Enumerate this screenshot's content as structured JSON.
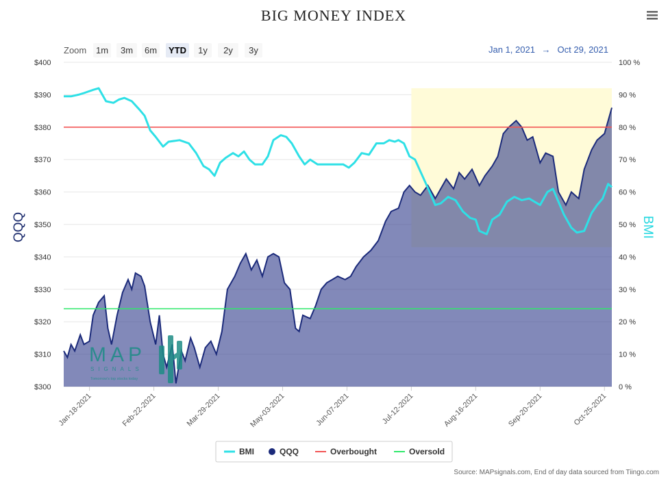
{
  "chart": {
    "title": "BIG MONEY INDEX",
    "zoom": {
      "label": "Zoom",
      "buttons": [
        "1m",
        "3m",
        "6m",
        "YTD",
        "1y",
        "2y",
        "3y"
      ],
      "active": "YTD"
    },
    "range": {
      "from": "Jan 1, 2021",
      "arrow": "→",
      "to": "Oct 29, 2021"
    },
    "axes": {
      "left_title": "QQQ",
      "right_title": "BMI",
      "left_ticks": [
        "$300",
        "$310",
        "$320",
        "$330",
        "$340",
        "$350",
        "$360",
        "$370",
        "$380",
        "$390",
        "$400"
      ],
      "right_ticks": [
        "0 %",
        "10 %",
        "20 %",
        "30 %",
        "40 %",
        "50 %",
        "60 %",
        "70 %",
        "80 %",
        "90 %",
        "100 %"
      ],
      "x_ticks": [
        "Jan-18-2021",
        "Feb-22-2021",
        "Mar-29-2021",
        "May-03-2021",
        "Jun-07-2021",
        "Jul-12-2021",
        "Aug-16-2021",
        "Sep-20-2021",
        "Oct-25-2021"
      ]
    },
    "legend": [
      {
        "name": "BMI",
        "symbol": "line"
      },
      {
        "name": "QQQ",
        "symbol": "dot"
      },
      {
        "name": "Overbought",
        "symbol": "line"
      },
      {
        "name": "Oversold",
        "symbol": "line"
      }
    ],
    "source": "Source: MAPsignals.com, End of day data sourced from Tiingo.com",
    "watermark": {
      "brand": "MAP",
      "sub": "SIGNALS",
      "tag": "Tomorrow's top stocks today"
    },
    "colors": {
      "bmi": "#2ee0e6",
      "qqq_fill": "#35418e",
      "qqq_line": "#1b2a7a",
      "overbought": "#f25454",
      "oversold": "#2ee86a",
      "highlight": "#fffbd8",
      "watermark": "#1e8c86"
    }
  },
  "chart_data": {
    "type": "line",
    "title": "BIG MONEY INDEX",
    "x_range": [
      "2021-01-04",
      "2021-10-29"
    ],
    "y_left": {
      "label": "QQQ",
      "range": [
        300,
        400
      ],
      "unit": "$"
    },
    "y_right": {
      "label": "BMI",
      "range": [
        0,
        100
      ],
      "unit": "%"
    },
    "overbought": 80,
    "oversold": 24,
    "highlight_range": [
      "2021-07-12",
      "2021-10-29"
    ],
    "highlight_bmi_range": [
      43,
      92
    ],
    "series": [
      {
        "name": "BMI",
        "axis": "right",
        "points": [
          [
            "2021-01-04",
            89.5
          ],
          [
            "2021-01-08",
            89.5
          ],
          [
            "2021-01-12",
            90
          ],
          [
            "2021-01-15",
            90.5
          ],
          [
            "2021-01-20",
            91.5
          ],
          [
            "2021-01-23",
            92
          ],
          [
            "2021-01-27",
            88
          ],
          [
            "2021-01-31",
            87.5
          ],
          [
            "2021-02-03",
            88.5
          ],
          [
            "2021-02-06",
            89
          ],
          [
            "2021-02-10",
            88
          ],
          [
            "2021-02-14",
            85.5
          ],
          [
            "2021-02-17",
            83.5
          ],
          [
            "2021-02-20",
            79
          ],
          [
            "2021-02-23",
            77
          ],
          [
            "2021-02-27",
            74
          ],
          [
            "2021-03-02",
            75.5
          ],
          [
            "2021-03-08",
            76
          ],
          [
            "2021-03-13",
            75
          ],
          [
            "2021-03-17",
            72
          ],
          [
            "2021-03-21",
            68
          ],
          [
            "2021-03-24",
            67
          ],
          [
            "2021-03-27",
            65
          ],
          [
            "2021-03-30",
            69
          ],
          [
            "2021-04-02",
            70.5
          ],
          [
            "2021-04-06",
            72
          ],
          [
            "2021-04-09",
            71
          ],
          [
            "2021-04-12",
            72.5
          ],
          [
            "2021-04-15",
            70
          ],
          [
            "2021-04-18",
            68.5
          ],
          [
            "2021-04-22",
            68.5
          ],
          [
            "2021-04-25",
            71
          ],
          [
            "2021-04-28",
            76
          ],
          [
            "2021-05-02",
            77.5
          ],
          [
            "2021-05-05",
            77
          ],
          [
            "2021-05-08",
            75
          ],
          [
            "2021-05-12",
            71
          ],
          [
            "2021-05-15",
            68.5
          ],
          [
            "2021-05-18",
            70
          ],
          [
            "2021-05-22",
            68.5
          ],
          [
            "2021-05-26",
            68.5
          ],
          [
            "2021-06-01",
            68.5
          ],
          [
            "2021-06-05",
            68.5
          ],
          [
            "2021-06-08",
            67.5
          ],
          [
            "2021-06-11",
            69
          ],
          [
            "2021-06-15",
            72
          ],
          [
            "2021-06-19",
            71.5
          ],
          [
            "2021-06-23",
            75
          ],
          [
            "2021-06-27",
            75
          ],
          [
            "2021-06-30",
            76
          ],
          [
            "2021-07-03",
            75.5
          ],
          [
            "2021-07-05",
            76
          ],
          [
            "2021-07-08",
            75
          ],
          [
            "2021-07-11",
            71
          ],
          [
            "2021-07-14",
            70
          ],
          [
            "2021-07-18",
            65
          ],
          [
            "2021-07-22",
            60
          ],
          [
            "2021-07-25",
            56
          ],
          [
            "2021-07-28",
            56.5
          ],
          [
            "2021-08-01",
            58.5
          ],
          [
            "2021-08-05",
            57.5
          ],
          [
            "2021-08-09",
            54
          ],
          [
            "2021-08-13",
            52
          ],
          [
            "2021-08-16",
            51.5
          ],
          [
            "2021-08-18",
            48
          ],
          [
            "2021-08-22",
            47
          ],
          [
            "2021-08-25",
            51.5
          ],
          [
            "2021-08-29",
            53
          ],
          [
            "2021-09-02",
            57
          ],
          [
            "2021-09-06",
            58.5
          ],
          [
            "2021-09-10",
            57.5
          ],
          [
            "2021-09-14",
            58
          ],
          [
            "2021-09-17",
            57
          ],
          [
            "2021-09-20",
            56
          ],
          [
            "2021-09-24",
            60
          ],
          [
            "2021-09-27",
            61
          ],
          [
            "2021-09-30",
            57
          ],
          [
            "2021-10-03",
            53
          ],
          [
            "2021-10-07",
            49
          ],
          [
            "2021-10-10",
            47.5
          ],
          [
            "2021-10-14",
            48
          ],
          [
            "2021-10-18",
            53.5
          ],
          [
            "2021-10-21",
            56
          ],
          [
            "2021-10-24",
            58
          ],
          [
            "2021-10-27",
            62.5
          ],
          [
            "2021-10-29",
            61.5
          ]
        ]
      },
      {
        "name": "QQQ",
        "axis": "left",
        "points": [
          [
            "2021-01-04",
            311
          ],
          [
            "2021-01-06",
            309
          ],
          [
            "2021-01-08",
            313
          ],
          [
            "2021-01-10",
            311
          ],
          [
            "2021-01-13",
            316
          ],
          [
            "2021-01-15",
            313
          ],
          [
            "2021-01-18",
            314
          ],
          [
            "2021-01-20",
            322
          ],
          [
            "2021-01-23",
            326
          ],
          [
            "2021-01-26",
            328
          ],
          [
            "2021-01-28",
            318
          ],
          [
            "2021-01-30",
            313
          ],
          [
            "2021-02-02",
            322
          ],
          [
            "2021-02-05",
            329
          ],
          [
            "2021-02-08",
            333
          ],
          [
            "2021-02-10",
            330
          ],
          [
            "2021-02-12",
            335
          ],
          [
            "2021-02-15",
            334
          ],
          [
            "2021-02-17",
            331
          ],
          [
            "2021-02-20",
            320
          ],
          [
            "2021-02-23",
            313
          ],
          [
            "2021-02-25",
            322
          ],
          [
            "2021-02-27",
            310
          ],
          [
            "2021-03-01",
            306
          ],
          [
            "2021-03-04",
            313
          ],
          [
            "2021-03-06",
            301
          ],
          [
            "2021-03-09",
            311
          ],
          [
            "2021-03-11",
            308
          ],
          [
            "2021-03-14",
            315
          ],
          [
            "2021-03-16",
            312
          ],
          [
            "2021-03-19",
            306
          ],
          [
            "2021-03-22",
            312
          ],
          [
            "2021-03-25",
            314
          ],
          [
            "2021-03-28",
            310
          ],
          [
            "2021-03-31",
            317
          ],
          [
            "2021-04-03",
            330
          ],
          [
            "2021-04-07",
            334
          ],
          [
            "2021-04-10",
            338
          ],
          [
            "2021-04-13",
            341
          ],
          [
            "2021-04-16",
            336
          ],
          [
            "2021-04-19",
            339
          ],
          [
            "2021-04-22",
            334
          ],
          [
            "2021-04-25",
            340
          ],
          [
            "2021-04-28",
            341
          ],
          [
            "2021-05-01",
            340
          ],
          [
            "2021-05-04",
            332
          ],
          [
            "2021-05-07",
            330
          ],
          [
            "2021-05-10",
            318
          ],
          [
            "2021-05-12",
            317
          ],
          [
            "2021-05-14",
            322
          ],
          [
            "2021-05-18",
            321
          ],
          [
            "2021-05-21",
            325
          ],
          [
            "2021-05-24",
            330
          ],
          [
            "2021-05-27",
            332
          ],
          [
            "2021-05-30",
            333
          ],
          [
            "2021-06-02",
            334
          ],
          [
            "2021-06-06",
            333
          ],
          [
            "2021-06-09",
            334
          ],
          [
            "2021-06-12",
            337
          ],
          [
            "2021-06-16",
            340
          ],
          [
            "2021-06-20",
            342
          ],
          [
            "2021-06-24",
            345
          ],
          [
            "2021-06-28",
            351
          ],
          [
            "2021-07-01",
            354
          ],
          [
            "2021-07-05",
            355
          ],
          [
            "2021-07-08",
            360
          ],
          [
            "2021-07-11",
            362
          ],
          [
            "2021-07-14",
            360
          ],
          [
            "2021-07-17",
            359
          ],
          [
            "2021-07-21",
            362
          ],
          [
            "2021-07-25",
            358
          ],
          [
            "2021-07-28",
            361
          ],
          [
            "2021-07-31",
            364
          ],
          [
            "2021-08-04",
            361
          ],
          [
            "2021-08-07",
            366
          ],
          [
            "2021-08-10",
            364
          ],
          [
            "2021-08-14",
            367
          ],
          [
            "2021-08-18",
            362
          ],
          [
            "2021-08-21",
            365
          ],
          [
            "2021-08-25",
            368
          ],
          [
            "2021-08-28",
            371
          ],
          [
            "2021-08-31",
            378
          ],
          [
            "2021-09-03",
            380
          ],
          [
            "2021-09-07",
            382
          ],
          [
            "2021-09-10",
            380
          ],
          [
            "2021-09-13",
            376
          ],
          [
            "2021-09-16",
            377
          ],
          [
            "2021-09-20",
            369
          ],
          [
            "2021-09-23",
            372
          ],
          [
            "2021-09-27",
            371
          ],
          [
            "2021-09-30",
            360
          ],
          [
            "2021-10-04",
            356
          ],
          [
            "2021-10-07",
            360
          ],
          [
            "2021-10-11",
            358
          ],
          [
            "2021-10-14",
            367
          ],
          [
            "2021-10-18",
            373
          ],
          [
            "2021-10-21",
            376
          ],
          [
            "2021-10-25",
            378
          ],
          [
            "2021-10-29",
            386
          ]
        ]
      }
    ]
  }
}
